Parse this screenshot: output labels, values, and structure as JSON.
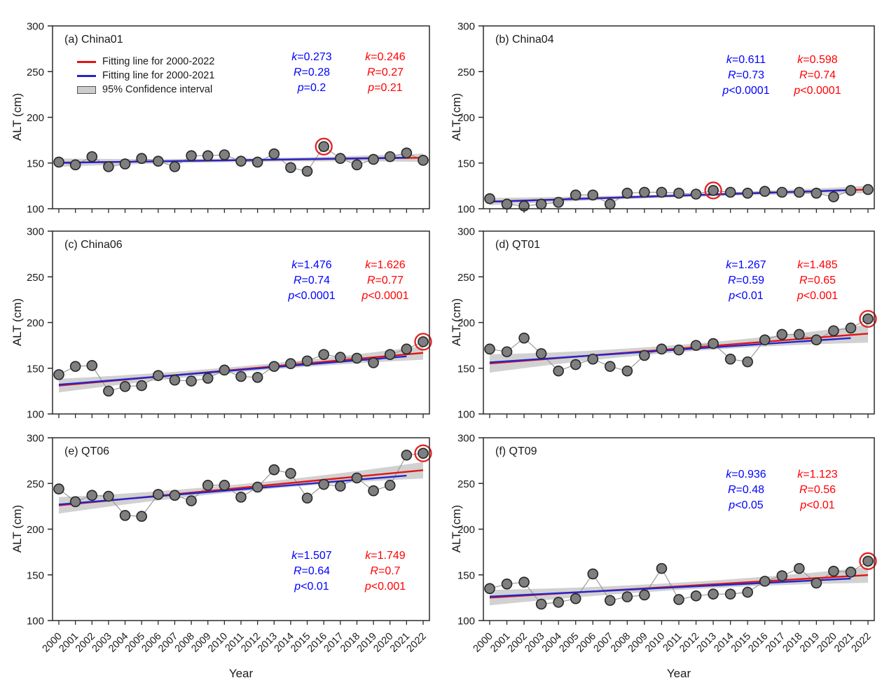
{
  "figure": {
    "x_axis_title": "Year",
    "y_axis_title": "ALT (cm)",
    "y_tick_labels": [
      "100",
      "150",
      "200",
      "250",
      "300"
    ],
    "legend": {
      "red_label": "Fitting line for 2000-2022",
      "blue_label": "Fitting line for 2000-2021",
      "band_label": "95% Confidence interval"
    },
    "colors": {
      "red_line": "#e01515",
      "blue_line": "#2525cc",
      "stats_red": "#ff0000",
      "stats_blue": "#0000ff",
      "band": "#c9c9c9",
      "marker_fill": "#7f7f7f",
      "marker_edge": "#262626",
      "connector": "#9a9a9a",
      "ring": "#e32222",
      "spine": "#2b2b2b"
    }
  },
  "chart_data": {
    "type": "line",
    "x": [
      2000,
      2001,
      2002,
      2003,
      2004,
      2005,
      2006,
      2007,
      2008,
      2009,
      2010,
      2011,
      2012,
      2013,
      2014,
      2015,
      2016,
      2017,
      2018,
      2019,
      2020,
      2021,
      2022
    ],
    "ylim": [
      100,
      300
    ],
    "yticks": [
      100,
      150,
      200,
      250,
      300
    ],
    "xlabel": "Year",
    "ylabel": "ALT (cm)",
    "legend_position": "panel (a) upper-left",
    "grid": false,
    "panels": [
      {
        "id": "a",
        "title": "(a) China01",
        "site": "China01",
        "values": [
          151,
          148,
          157,
          146,
          149,
          155,
          152,
          146,
          158,
          158,
          159,
          152,
          151,
          160,
          145,
          141,
          168,
          155,
          148,
          154,
          157,
          161,
          153
        ],
        "circled_year": 2016,
        "fit_2000_2021": {
          "y2000": 150.2,
          "y2021": 155.9
        },
        "fit_2000_2022": {
          "y2000": 150.4,
          "y2022": 155.8
        },
        "ci_half_mid": 2.0,
        "ci_half_end": 4.5,
        "stats_blue": [
          [
            "k",
            "=0.273"
          ],
          [
            "R",
            "=0.28"
          ],
          [
            "p",
            "=0.2"
          ]
        ],
        "stats_red": [
          [
            "k",
            "=0.246"
          ],
          [
            "R",
            "=0.27"
          ],
          [
            "p",
            "=0.21"
          ]
        ]
      },
      {
        "id": "b",
        "title": "(b) China04",
        "site": "China04",
        "values": [
          111,
          105,
          103,
          105,
          107,
          115,
          115,
          105,
          117,
          118,
          118,
          117,
          116,
          120,
          118,
          117,
          119,
          118,
          118,
          117,
          113,
          120,
          121
        ],
        "circled_year": 2013,
        "fit_2000_2021": {
          "y2000": 107.6,
          "y2021": 120.4
        },
        "fit_2000_2022": {
          "y2000": 107.8,
          "y2022": 121.0
        },
        "ci_half_mid": 1.8,
        "ci_half_end": 4.0,
        "stats_blue": [
          [
            "k",
            "=0.611"
          ],
          [
            "R",
            "=0.73"
          ],
          [
            "p",
            "<0.0001"
          ]
        ],
        "stats_red": [
          [
            "k",
            "=0.598"
          ],
          [
            "R",
            "=0.74"
          ],
          [
            "p",
            "<0.0001"
          ]
        ]
      },
      {
        "id": "c",
        "title": "(c) China06",
        "site": "China06",
        "values": [
          143,
          152,
          153,
          125,
          130,
          131,
          142,
          137,
          136,
          139,
          148,
          141,
          140,
          152,
          155,
          158,
          165,
          162,
          161,
          156,
          165,
          171,
          179
        ],
        "circled_year": 2022,
        "fit_2000_2021": {
          "y2000": 132.0,
          "y2021": 163.0
        },
        "fit_2000_2022": {
          "y2000": 131.0,
          "y2022": 166.8
        },
        "ci_half_mid": 3.2,
        "ci_half_end": 7.5,
        "stats_blue": [
          [
            "k",
            "=1.476"
          ],
          [
            "R",
            "=0.74"
          ],
          [
            "p",
            "<0.0001"
          ]
        ],
        "stats_red": [
          [
            "k",
            "=1.626"
          ],
          [
            "R",
            "=0.77"
          ],
          [
            "p",
            "<0.0001"
          ]
        ]
      },
      {
        "id": "d",
        "title": "(d) QT01",
        "site": "QT01",
        "values": [
          171,
          168,
          183,
          166,
          147,
          154,
          160,
          152,
          147,
          164,
          171,
          170,
          175,
          177,
          160,
          157,
          181,
          187,
          187,
          181,
          191,
          194,
          204
        ],
        "circled_year": 2022,
        "fit_2000_2021": {
          "y2000": 156.4,
          "y2021": 183.0
        },
        "fit_2000_2022": {
          "y2000": 155.2,
          "y2022": 187.9
        },
        "ci_half_mid": 4.0,
        "ci_half_end": 10.0,
        "stats_blue": [
          [
            "k",
            "=1.267"
          ],
          [
            "R",
            "=0.59"
          ],
          [
            "p",
            "<0.01"
          ]
        ],
        "stats_red": [
          [
            "k",
            "=1.485"
          ],
          [
            "R",
            "=0.65"
          ],
          [
            "p",
            "<0.001"
          ]
        ]
      },
      {
        "id": "e",
        "title": "(e) QT06",
        "site": "QT06",
        "values": [
          244,
          230,
          237,
          236,
          215,
          214,
          238,
          237,
          231,
          248,
          248,
          235,
          246,
          265,
          261,
          234,
          249,
          247,
          256,
          242,
          248,
          281,
          283
        ],
        "circled_year": 2022,
        "fit_2000_2021": {
          "y2000": 227.0,
          "y2021": 258.6
        },
        "fit_2000_2022": {
          "y2000": 226.0,
          "y2022": 264.5
        },
        "ci_half_mid": 4.0,
        "ci_half_end": 9.0,
        "stats_blue": [
          [
            "k",
            "=1.507"
          ],
          [
            "R",
            "=0.64"
          ],
          [
            "p",
            "<0.01"
          ]
        ],
        "stats_red": [
          [
            "k",
            "=1.749"
          ],
          [
            "R",
            "=0.7"
          ],
          [
            "p",
            "<0.001"
          ]
        ]
      },
      {
        "id": "f",
        "title": "(f) QT09",
        "site": "QT09",
        "values": [
          135,
          140,
          142,
          118,
          120,
          124,
          151,
          122,
          126,
          128,
          157,
          123,
          127,
          129,
          129,
          131,
          143,
          149,
          157,
          141,
          154,
          153,
          165
        ],
        "circled_year": 2022,
        "fit_2000_2021": {
          "y2000": 126.2,
          "y2021": 145.9
        },
        "fit_2000_2022": {
          "y2000": 125.1,
          "y2022": 149.8
        },
        "ci_half_mid": 4.0,
        "ci_half_end": 8.5,
        "stats_blue": [
          [
            "k",
            "=0.936"
          ],
          [
            "R",
            "=0.48"
          ],
          [
            "p",
            "<0.05"
          ]
        ],
        "stats_red": [
          [
            "k",
            "=1.123"
          ],
          [
            "R",
            "=0.56"
          ],
          [
            "p",
            "<0.01"
          ]
        ]
      }
    ]
  }
}
